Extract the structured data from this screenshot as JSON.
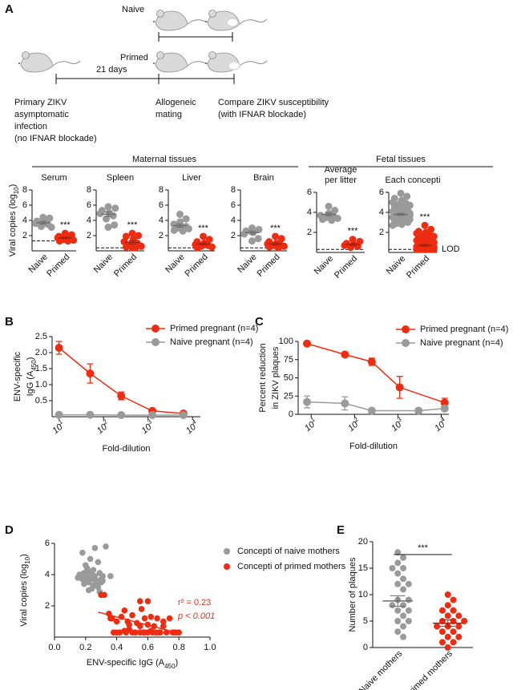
{
  "panel_labels": [
    "A",
    "B",
    "C",
    "D",
    "E"
  ],
  "schematic": {
    "naive": "Naive",
    "primed": "Primed",
    "interval": "21 days",
    "steps": [
      [
        "Primary ZIKV",
        "asymptomatic",
        "infection",
        "(no IFNAR blockade)"
      ],
      [
        "Allogeneic",
        "mating"
      ],
      [
        "Compare ZIKV susceptibility",
        "(with IFNAR blockade)"
      ]
    ]
  },
  "tissue_groups": [
    "Maternal tissues",
    "Fetal tissues"
  ],
  "chart_data": [
    {
      "type": "dot",
      "title": [
        [
          "Serum"
        ]
      ],
      "y_label": [
        [
          "Viral copies (log",
          {
            "sub": "10"
          },
          ")"
        ]
      ],
      "categories": [
        "Naive",
        "Primed"
      ],
      "colors": [
        "#9a9a9a",
        "#ee2c12"
      ],
      "values": [
        [
          4.4,
          4.3,
          3.9,
          3.8,
          3.6,
          3.5,
          3.2,
          3.1
        ],
        [
          2.3,
          2.1,
          1.9,
          1.8,
          1.7,
          1.6,
          1.5,
          1.4,
          1.3,
          1.3
        ]
      ],
      "means": [
        3.7,
        1.7
      ],
      "sems": [
        0.2,
        0.1
      ],
      "lod": 1.3,
      "annotation": "***",
      "ylim": [
        0,
        8
      ],
      "yticks": [
        2,
        4,
        6,
        8
      ]
    },
    {
      "type": "dot",
      "title": [
        [
          "Spleen"
        ]
      ],
      "categories": [
        "Naive",
        "Primed"
      ],
      "colors": [
        "#9a9a9a",
        "#ee2c12"
      ],
      "values": [
        [
          5.8,
          5.6,
          5.3,
          5.0,
          4.9,
          4.6,
          4.2,
          3.4,
          3.1
        ],
        [
          2.3,
          2.0,
          1.9,
          1.5,
          1.2,
          1.0,
          0.8,
          0.6,
          0.5,
          0.4,
          0.4
        ]
      ],
      "means": [
        4.8,
        1.1
      ],
      "sems": [
        0.3,
        0.2
      ],
      "lod": 0.4,
      "annotation": "***",
      "ylim": [
        0,
        8
      ],
      "yticks": [
        2,
        4,
        6,
        8
      ]
    },
    {
      "type": "dot",
      "title": [
        [
          "Liver"
        ]
      ],
      "categories": [
        "Naive",
        "Primed"
      ],
      "colors": [
        "#9a9a9a",
        "#ee2c12"
      ],
      "values": [
        [
          4.8,
          4.2,
          3.8,
          3.5,
          3.2,
          3.1,
          3.0,
          2.9,
          2.7,
          2.6
        ],
        [
          1.9,
          1.5,
          1.2,
          1.0,
          0.8,
          0.7,
          0.6,
          0.5,
          0.4
        ]
      ],
      "means": [
        3.3,
        0.9
      ],
      "sems": [
        0.2,
        0.15
      ],
      "lod": 0.4,
      "annotation": "***",
      "ylim": [
        0,
        8
      ],
      "yticks": [
        2,
        4,
        6,
        8
      ]
    },
    {
      "type": "dot",
      "title": [
        [
          "Brain"
        ]
      ],
      "categories": [
        "Naive",
        "Primed"
      ],
      "colors": [
        "#9a9a9a",
        "#ee2c12"
      ],
      "values": [
        [
          3.0,
          2.8,
          2.6,
          2.4,
          2.2,
          1.6,
          1.3
        ],
        [
          1.9,
          1.6,
          1.2,
          1.0,
          0.9,
          0.8,
          0.7,
          0.6,
          0.5,
          0.4
        ]
      ],
      "means": [
        2.4,
        0.9
      ],
      "sems": [
        0.2,
        0.15
      ],
      "lod": 0.4,
      "annotation": "***",
      "ylim": [
        0,
        8
      ],
      "yticks": [
        2,
        4,
        6,
        8
      ]
    },
    {
      "type": "dot",
      "title": [
        [
          "Average"
        ],
        [
          "per litter"
        ]
      ],
      "categories": [
        "Naive",
        "Primed"
      ],
      "colors": [
        "#9a9a9a",
        "#ee2c12"
      ],
      "values": [
        [
          4.6,
          4.2,
          3.9,
          3.8,
          3.7,
          3.6,
          3.5,
          3.4,
          3.3,
          3.2
        ],
        [
          1.3,
          1.1,
          0.9,
          0.8,
          0.7,
          0.6,
          0.5
        ]
      ],
      "means": [
        3.8,
        0.8
      ],
      "sems": [
        0.15,
        0.1
      ],
      "lod": 0.3,
      "annotation": "***",
      "ylim": [
        0,
        6
      ],
      "yticks": [
        2,
        4,
        6
      ]
    },
    {
      "type": "dot",
      "title": [
        [
          "Each concepti"
        ]
      ],
      "categories": [
        "Naive",
        "Primed"
      ],
      "colors": [
        "#9a9a9a",
        "#ee2c12"
      ],
      "values": [
        [
          5.9,
          5.6,
          5.4,
          5.2,
          5.0,
          4.9,
          4.8,
          4.7,
          4.6,
          4.5,
          4.4,
          4.4,
          4.3,
          4.2,
          4.1,
          4.0,
          4.0,
          3.9,
          3.8,
          3.8,
          3.7,
          3.6,
          3.6,
          3.5,
          3.5,
          3.4,
          3.3,
          3.3,
          3.2,
          3.1,
          3.0,
          3.0,
          2.9,
          2.8,
          2.7,
          3.9,
          4.1,
          3.7,
          3.4,
          3.6
        ],
        [
          2.7,
          2.3,
          2.1,
          2.0,
          1.9,
          1.8,
          1.7,
          1.6,
          1.6,
          1.5,
          1.4,
          1.4,
          1.3,
          1.2,
          1.2,
          1.1,
          1.0,
          1.0,
          0.9,
          0.9,
          0.8,
          0.8,
          0.7,
          0.7,
          0.6,
          0.6,
          0.5,
          0.5,
          0.5,
          0.4,
          0.4,
          0.4,
          0.4,
          0.3,
          0.3,
          0.3,
          0.3,
          0.3,
          0.3,
          0.3,
          0.3,
          0.3,
          0.3,
          0.3,
          0.3
        ]
      ],
      "means": [
        3.8,
        0.7
      ],
      "sems": [
        0.1,
        0.1
      ],
      "lod": 0.3,
      "lod_label": "LOD",
      "annotation": "***",
      "ylim": [
        0,
        6
      ],
      "yticks": [
        2,
        4,
        6
      ]
    },
    {
      "type": "line",
      "x_label": [
        [
          "Fold-dilution"
        ]
      ],
      "y_label": [
        [
          "ENV-specific"
        ],
        [
          "IgG (A",
          {
            "sub": "450"
          },
          ")"
        ]
      ],
      "xlog": true,
      "legend": "top-right",
      "xlim": [
        7,
        15000
      ],
      "xticks": [
        {
          "value": 10,
          "label": "10",
          "sup": "1"
        },
        {
          "value": 100,
          "label": "10",
          "sup": "2"
        },
        {
          "value": 1000,
          "label": "10",
          "sup": "3"
        },
        {
          "value": 10000,
          "label": "10",
          "sup": "4"
        }
      ],
      "ylim": [
        0,
        2.5
      ],
      "yticks": [
        0.5,
        {
          "value": 1,
          "label": "1.0"
        },
        1.5,
        {
          "value": 2,
          "label": "2.0"
        },
        2.5
      ],
      "series": [
        {
          "name": "Primed pregnant (n=4)",
          "color": "#ee2c12",
          "x": [
            10,
            50,
            250,
            1250,
            6250
          ],
          "values": [
            2.15,
            1.35,
            0.65,
            0.18,
            0.1
          ],
          "errors": [
            0.2,
            0.3,
            0.12,
            0.03,
            0.02
          ]
        },
        {
          "name": "Naive pregnant (n=4)",
          "color": "#9a9a9a",
          "x": [
            10,
            50,
            250,
            1250,
            6250
          ],
          "values": [
            0.06,
            0.06,
            0.05,
            0.05,
            0.05
          ]
        }
      ]
    },
    {
      "type": "line",
      "x_label": [
        [
          "Fold-dilution"
        ]
      ],
      "y_label": [
        [
          "Percent reduction"
        ],
        [
          "in ZIKV plaques"
        ]
      ],
      "xlog": true,
      "legend": "top-right",
      "xlim": [
        5,
        15000
      ],
      "xticks": [
        {
          "value": 10,
          "label": "10",
          "sup": "1"
        },
        {
          "value": 100,
          "label": "10",
          "sup": "2"
        },
        {
          "value": 1000,
          "label": "10",
          "sup": "3"
        },
        {
          "value": 10000,
          "label": "10",
          "sup": "4"
        }
      ],
      "ylim": [
        0,
        100
      ],
      "yticks": [
        0,
        25,
        50,
        75,
        100
      ],
      "series": [
        {
          "name": "Primed pregnant (n=4)",
          "color": "#ee2c12",
          "x": [
            8,
            60,
            250,
            1100,
            12000
          ],
          "values": [
            97,
            82,
            72,
            37,
            16
          ],
          "errors": [
            2,
            3,
            5,
            15,
            6
          ]
        },
        {
          "name": "Naive pregnant (n=4)",
          "color": "#9a9a9a",
          "x": [
            8,
            60,
            250,
            3000,
            12000
          ],
          "values": [
            17,
            15,
            5,
            5,
            8
          ],
          "errors": [
            8,
            9,
            2,
            3,
            3
          ]
        }
      ]
    },
    {
      "type": "scatter",
      "x_label": [
        [
          "ENV-specific IgG (A",
          {
            "sub": "450"
          },
          ")"
        ]
      ],
      "y_label": [
        [
          "Viral copies  (log",
          {
            "sub": "10"
          },
          ")"
        ]
      ],
      "legend": "top-right",
      "xlim": [
        0,
        1
      ],
      "xticks": [
        {
          "value": 0,
          "label": "0.0"
        },
        0.2,
        0.4,
        0.6,
        0.8,
        {
          "value": 1,
          "label": "1.0"
        }
      ],
      "ylim": [
        0,
        6
      ],
      "yticks": [
        2,
        4,
        6
      ],
      "series": [
        {
          "name": "Concepti of naive mothers",
          "color": "#9a9a9a",
          "x": [
            0.15,
            0.17,
            0.18,
            0.19,
            0.2,
            0.21,
            0.22,
            0.22,
            0.23,
            0.24,
            0.25,
            0.25,
            0.26,
            0.27,
            0.28,
            0.29,
            0.3,
            0.31,
            0.18,
            0.2,
            0.23,
            0.26,
            0.28,
            0.21,
            0.24,
            0.27,
            0.3,
            0.33,
            0.22,
            0.19,
            0.36,
            0.25,
            0.29,
            0.31,
            0.16
          ],
          "values": [
            3.8,
            4.0,
            3.7,
            4.1,
            3.9,
            3.6,
            4.2,
            3.5,
            3.8,
            4.0,
            3.3,
            4.3,
            3.9,
            3.6,
            3.2,
            4.1,
            3.7,
            3.9,
            5.4,
            4.6,
            5.0,
            5.7,
            4.8,
            4.4,
            3.1,
            3.4,
            3.5,
            5.8,
            3.0,
            3.4,
            3.9,
            3.7,
            2.9,
            3.6,
            4.0
          ]
        },
        {
          "name": "Concepti of primed mothers",
          "color": "#ee2c12",
          "x": [
            0.3,
            0.32,
            0.35,
            0.37,
            0.38,
            0.4,
            0.4,
            0.42,
            0.43,
            0.45,
            0.46,
            0.47,
            0.48,
            0.5,
            0.5,
            0.52,
            0.53,
            0.55,
            0.55,
            0.56,
            0.57,
            0.58,
            0.58,
            0.6,
            0.6,
            0.62,
            0.63,
            0.64,
            0.65,
            0.66,
            0.67,
            0.68,
            0.7,
            0.72,
            0.74,
            0.76,
            0.78,
            0.8,
            0.55,
            0.45,
            0.6,
            0.36,
            0.48,
            0.62,
            0.7
          ],
          "values": [
            2.7,
            2.7,
            1.5,
            1.2,
            0.3,
            1.0,
            0.3,
            0.3,
            1.3,
            0.4,
            0.3,
            1.0,
            0.8,
            0.3,
            1.4,
            0.3,
            0.9,
            2.3,
            0.3,
            1.8,
            0.3,
            1.2,
            0.3,
            0.8,
            0.3,
            1.3,
            0.3,
            0.7,
            0.3,
            1.2,
            0.3,
            0.3,
            0.7,
            0.3,
            1.2,
            0.3,
            0.3,
            0.3,
            0.7,
            1.7,
            2.3,
            1.2,
            0.5,
            0.4,
            1.0
          ]
        }
      ],
      "trend_x": [
        0.28,
        0.8
      ],
      "trend_y": [
        1.6,
        0.25
      ],
      "trend_color": "#ee2c12",
      "annotations": [
        "r² = 0.23",
        "p < 0.001"
      ],
      "annotation_color": "#ee2c12"
    },
    {
      "type": "dot",
      "y_label": [
        [
          "Number of plaques"
        ]
      ],
      "categories": [
        "Naive mothers",
        "Primed mothers"
      ],
      "colors": [
        "#9a9a9a",
        "#ee2c12"
      ],
      "values": [
        [
          18,
          17,
          16,
          15,
          15,
          14,
          13,
          12,
          12,
          11,
          9,
          9,
          8,
          8,
          7,
          7,
          6,
          5,
          5,
          4,
          3,
          2
        ],
        [
          10,
          9,
          8,
          7,
          7,
          6,
          6,
          5,
          5,
          5,
          4,
          4,
          4,
          3,
          3,
          2,
          2,
          1,
          1,
          0
        ]
      ],
      "means": [
        8.8,
        4.6
      ],
      "sems": [
        1.0,
        0.6
      ],
      "annotation": "***",
      "ylim": [
        0,
        20
      ],
      "yticks": [
        0,
        5,
        10,
        15,
        20
      ]
    }
  ]
}
